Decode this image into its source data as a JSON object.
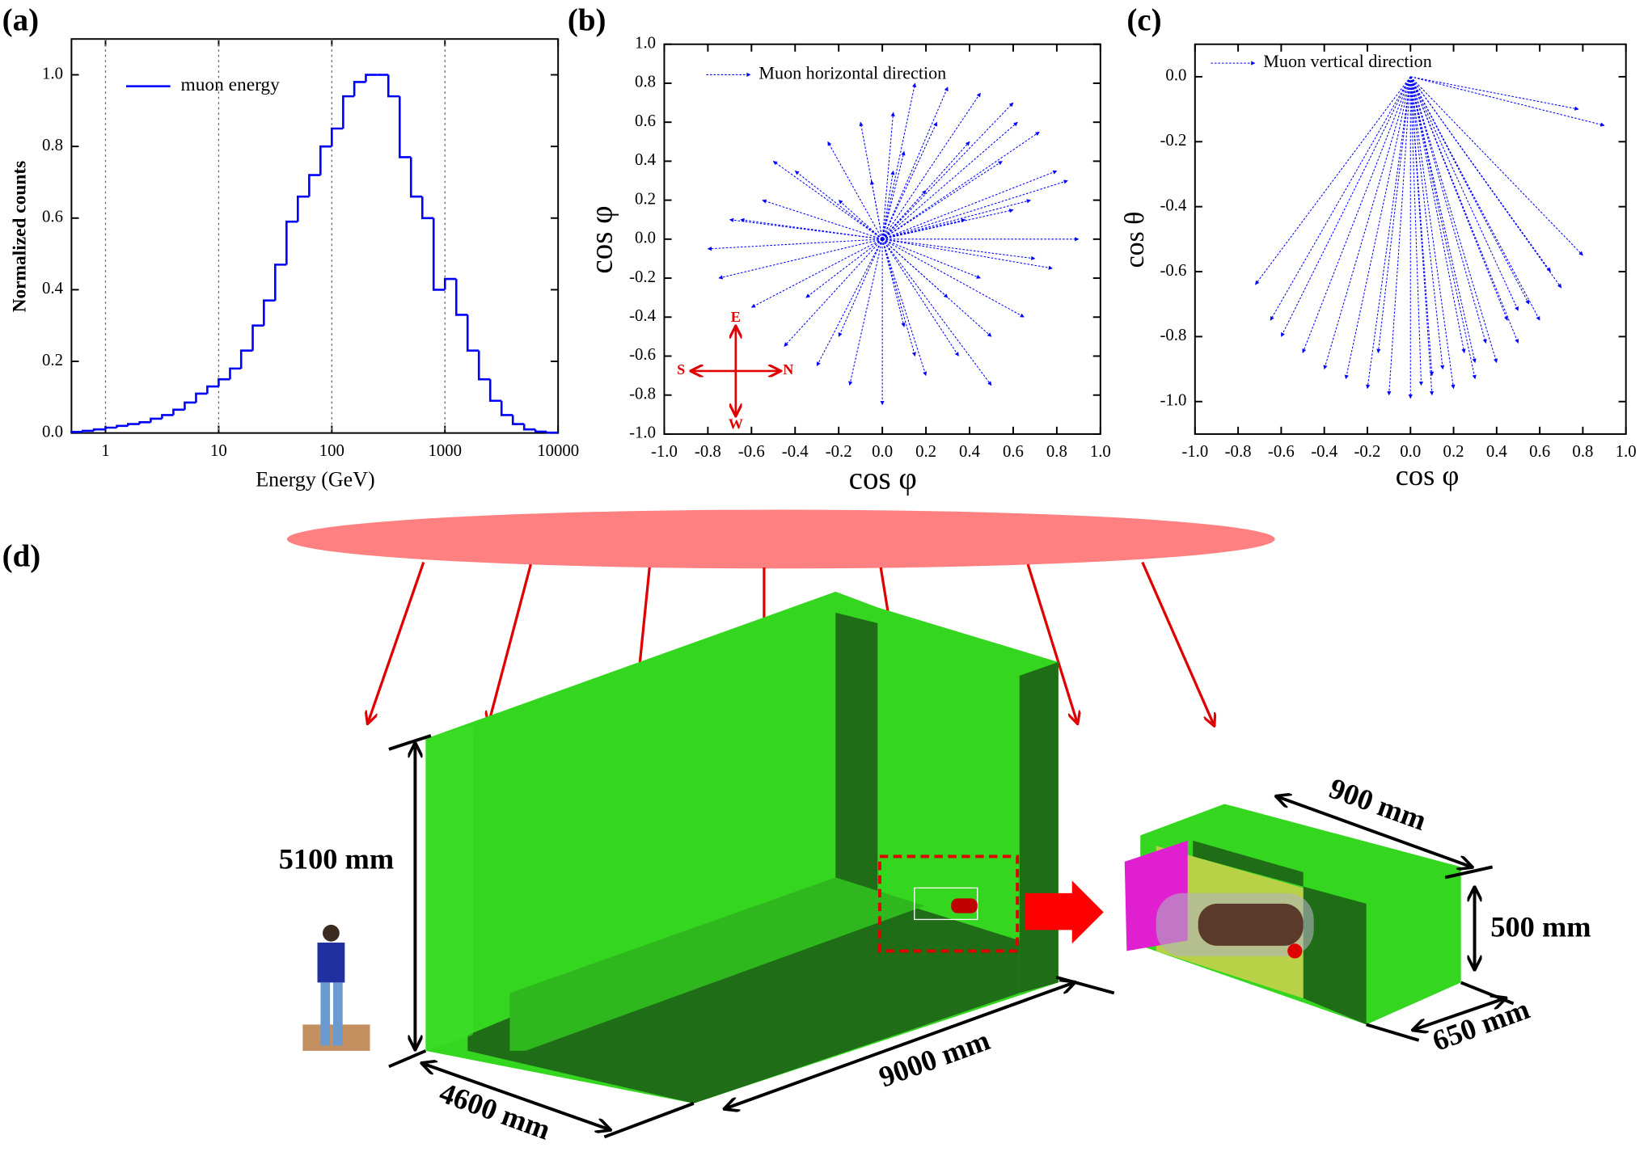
{
  "chart_data": [
    {
      "type": "histogram",
      "panel_label": "(a)",
      "xlabel": "Energy (GeV)",
      "ylabel": "Normalized counts",
      "xlog": true,
      "grid": "x",
      "xlim": [
        0.5,
        10000
      ],
      "ylim": [
        0,
        1.1
      ],
      "xticks": [
        1,
        10,
        100,
        1000,
        10000
      ],
      "yticks": [
        {
          "value": 0,
          "label": "0.0"
        },
        {
          "value": 0.2,
          "label": "0.2"
        },
        {
          "value": 0.4,
          "label": "0.4"
        },
        {
          "value": 0.6,
          "label": "0.6"
        },
        {
          "value": 0.8,
          "label": "0.8"
        },
        {
          "value": 1,
          "label": "1.0"
        }
      ],
      "bins": [
        0.5,
        0.63,
        0.79,
        1,
        1.26,
        1.58,
        2,
        2.51,
        3.16,
        3.98,
        5.01,
        6.31,
        7.94,
        10,
        12.6,
        15.8,
        20,
        25.1,
        31.6,
        39.8,
        50.1,
        63.1,
        79.4,
        100,
        126,
        158,
        200,
        251,
        316,
        398,
        501,
        631,
        794,
        1000,
        1259,
        1585,
        1995,
        2512,
        3162,
        3981,
        5012,
        6310,
        7943,
        10000
      ],
      "series": [
        {
          "name": "muon energy",
          "color": "#0000ff",
          "values": [
            0.003,
            0.006,
            0.01,
            0.015,
            0.02,
            0.025,
            0.03,
            0.04,
            0.05,
            0.065,
            0.085,
            0.11,
            0.13,
            0.15,
            0.18,
            0.23,
            0.3,
            0.37,
            0.47,
            0.59,
            0.66,
            0.72,
            0.8,
            0.85,
            0.94,
            0.98,
            1.0,
            1.0,
            0.94,
            0.77,
            0.66,
            0.6,
            0.4,
            0.43,
            0.33,
            0.23,
            0.15,
            0.09,
            0.05,
            0.025,
            0.01,
            0.004,
            0.001
          ]
        }
      ]
    },
    {
      "type": "quiver",
      "panel_label": "(b)",
      "xlabel": "cos φ",
      "ylabel": "cos φ",
      "xlim": [
        -1,
        1
      ],
      "ylim": [
        -1,
        1
      ],
      "xticks": [
        {
          "value": -1,
          "label": "-1.0"
        },
        {
          "value": -0.8,
          "label": "-0.8"
        },
        {
          "value": -0.6,
          "label": "-0.6"
        },
        {
          "value": -0.4,
          "label": "-0.4"
        },
        {
          "value": -0.2,
          "label": "-0.2"
        },
        {
          "value": 0,
          "label": "0.0"
        },
        {
          "value": 0.2,
          "label": "0.2"
        },
        {
          "value": 0.4,
          "label": "0.4"
        },
        {
          "value": 0.6,
          "label": "0.6"
        },
        {
          "value": 0.8,
          "label": "0.8"
        },
        {
          "value": 1,
          "label": "1.0"
        }
      ],
      "yticks": [
        {
          "value": -1,
          "label": "-1.0"
        },
        {
          "value": -0.8,
          "label": "-0.8"
        },
        {
          "value": -0.6,
          "label": "-0.6"
        },
        {
          "value": -0.4,
          "label": "-0.4"
        },
        {
          "value": -0.2,
          "label": "-0.2"
        },
        {
          "value": 0,
          "label": "0.0"
        },
        {
          "value": 0.2,
          "label": "0.2"
        },
        {
          "value": 0.4,
          "label": "0.4"
        },
        {
          "value": 0.6,
          "label": "0.6"
        },
        {
          "value": 0.8,
          "label": "0.8"
        },
        {
          "value": 1,
          "label": "1.0"
        }
      ],
      "compass": {
        "up": "E",
        "left": "S",
        "right": "N",
        "down": "W",
        "color": "#e00000"
      },
      "series": [
        {
          "name": "Muon horizontal direction",
          "color": "#0000ff",
          "x": [
            0.85,
            0.72,
            0.6,
            0.45,
            0.3,
            0.15,
            0.05,
            -0.1,
            -0.25,
            -0.4,
            -0.55,
            -0.7,
            -0.8,
            -0.75,
            -0.6,
            -0.45,
            -0.3,
            -0.15,
            0.0,
            0.2,
            0.35,
            0.5,
            0.65,
            0.78,
            0.9,
            0.55,
            0.4,
            0.25,
            0.1,
            -0.05,
            -0.2,
            0.3,
            0.45,
            0.6,
            0.7,
            0.2,
            0.1,
            -0.5,
            -0.35,
            0.5,
            0.62,
            0.15,
            -0.65,
            0.38,
            0.8,
            -0.2,
            0.05,
            0.68
          ],
          "values": [
            0.3,
            0.55,
            0.7,
            0.75,
            0.78,
            0.8,
            0.65,
            0.6,
            0.5,
            0.35,
            0.2,
            0.1,
            -0.05,
            -0.2,
            -0.35,
            -0.55,
            -0.65,
            -0.75,
            -0.85,
            -0.7,
            -0.6,
            -0.5,
            -0.4,
            -0.15,
            0.0,
            0.4,
            0.5,
            0.6,
            0.45,
            0.3,
            0.2,
            -0.3,
            -0.2,
            0.15,
            -0.1,
            0.25,
            -0.45,
            0.4,
            -0.3,
            -0.75,
            0.6,
            -0.6,
            0.1,
            0.1,
            0.35,
            -0.5,
            0.35,
            0.2
          ]
        }
      ]
    },
    {
      "type": "quiver",
      "panel_label": "(c)",
      "xlabel": "cos φ",
      "ylabel": "cos θ",
      "xlim": [
        -1,
        1
      ],
      "ylim": [
        -1.1,
        0.1
      ],
      "xticks": [
        {
          "value": -1,
          "label": "-1.0"
        },
        {
          "value": -0.8,
          "label": "-0.8"
        },
        {
          "value": -0.6,
          "label": "-0.6"
        },
        {
          "value": -0.4,
          "label": "-0.4"
        },
        {
          "value": -0.2,
          "label": "-0.2"
        },
        {
          "value": 0,
          "label": "0.0"
        },
        {
          "value": 0.2,
          "label": "0.2"
        },
        {
          "value": 0.4,
          "label": "0.4"
        },
        {
          "value": 0.6,
          "label": "0.6"
        },
        {
          "value": 0.8,
          "label": "0.8"
        },
        {
          "value": 1,
          "label": "1.0"
        }
      ],
      "yticks": [
        {
          "value": 0,
          "label": "0.0"
        },
        {
          "value": -0.2,
          "label": "-0.2"
        },
        {
          "value": -0.4,
          "label": "-0.4"
        },
        {
          "value": -0.6,
          "label": "-0.6"
        },
        {
          "value": -0.8,
          "label": "-0.8"
        },
        {
          "value": -1,
          "label": "-1.0"
        }
      ],
      "series": [
        {
          "name": "Muon vertical direction",
          "color": "#0000ff",
          "x": [
            -0.72,
            -0.65,
            -0.6,
            -0.5,
            -0.4,
            -0.3,
            -0.2,
            -0.1,
            0.0,
            0.1,
            0.2,
            0.3,
            0.4,
            0.5,
            0.6,
            0.7,
            0.8,
            0.9,
            0.78,
            0.05,
            0.15,
            0.25,
            0.35,
            0.45,
            0.55,
            0.65,
            -0.15,
            0.1,
            0.3,
            0.5
          ],
          "values": [
            -0.64,
            -0.75,
            -0.8,
            -0.85,
            -0.9,
            -0.93,
            -0.96,
            -0.98,
            -0.99,
            -0.98,
            -0.96,
            -0.93,
            -0.88,
            -0.82,
            -0.75,
            -0.65,
            -0.55,
            -0.15,
            -0.1,
            -0.95,
            -0.9,
            -0.85,
            -0.82,
            -0.75,
            -0.7,
            -0.6,
            -0.85,
            -0.92,
            -0.88,
            -0.72
          ]
        }
      ]
    }
  ],
  "diagram": {
    "panel_label": "(d)",
    "height": "5100 mm",
    "depth": "4600 mm",
    "length": "9000 mm",
    "detector_length": "900 mm",
    "detector_height": "500 mm",
    "detector_width": "650 mm"
  }
}
